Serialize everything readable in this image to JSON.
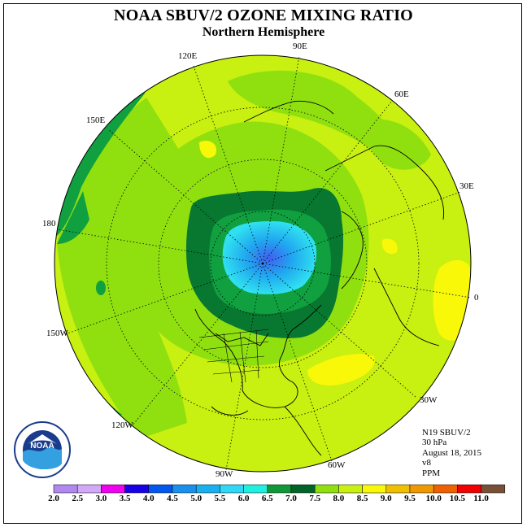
{
  "title": "NOAA SBUV/2 OZONE MIXING RATIO",
  "subtitle": "Northern Hemisphere",
  "longitude_labels": {
    "lon_90e": "90E",
    "lon_120e": "120E",
    "lon_60e": "60E",
    "lon_150e": "150E",
    "lon_30e": "30E",
    "lon_180": "180",
    "lon_0": "0",
    "lon_150w": "150W",
    "lon_30w": "30W",
    "lon_120w": "120W",
    "lon_60w": "60W",
    "lon_90w": "90W"
  },
  "info": {
    "instrument": "N19 SBUV/2",
    "level": "30 hPa",
    "date": "August 18, 2015",
    "version": "v8",
    "units": "PPM"
  },
  "colorbar": {
    "labels": [
      "2.0",
      "2.5",
      "3.0",
      "3.5",
      "4.0",
      "4.5",
      "5.0",
      "5.5",
      "6.0",
      "6.5",
      "7.0",
      "7.5",
      "8.0",
      "8.5",
      "9.0",
      "9.5",
      "10.0",
      "10.5",
      "11.0"
    ],
    "colors": [
      "#b088f0",
      "#d4a8f8",
      "#f000f0",
      "#2000e0",
      "#0050f0",
      "#1888f8",
      "#10a8f0",
      "#30d0f8",
      "#20f0e0",
      "#10a040",
      "#087830",
      "#006428",
      "#90e010",
      "#c8f010",
      "#f8f808",
      "#f8c800",
      "#f89800",
      "#f86000",
      "#f00000",
      "#785038"
    ],
    "colorbar_colors": [
      "#b088f0",
      "#d4a8f8",
      "#f000f0",
      "#1800e8",
      "#0058f0",
      "#1890f0",
      "#18b0f0",
      "#30d8f8",
      "#20f0e0",
      "#109838",
      "#006428",
      "#90e010",
      "#c8f010",
      "#f8f808",
      "#f0c000",
      "#f09800",
      "#f06000",
      "#f00000",
      "#785038"
    ]
  },
  "logo": {
    "text": "NOAA",
    "ring_text": "NATIONAL OCEANIC AND ATMOSPHERIC ADMINISTRATION · U.S. DEPARTMENT OF COMMERCE"
  }
}
